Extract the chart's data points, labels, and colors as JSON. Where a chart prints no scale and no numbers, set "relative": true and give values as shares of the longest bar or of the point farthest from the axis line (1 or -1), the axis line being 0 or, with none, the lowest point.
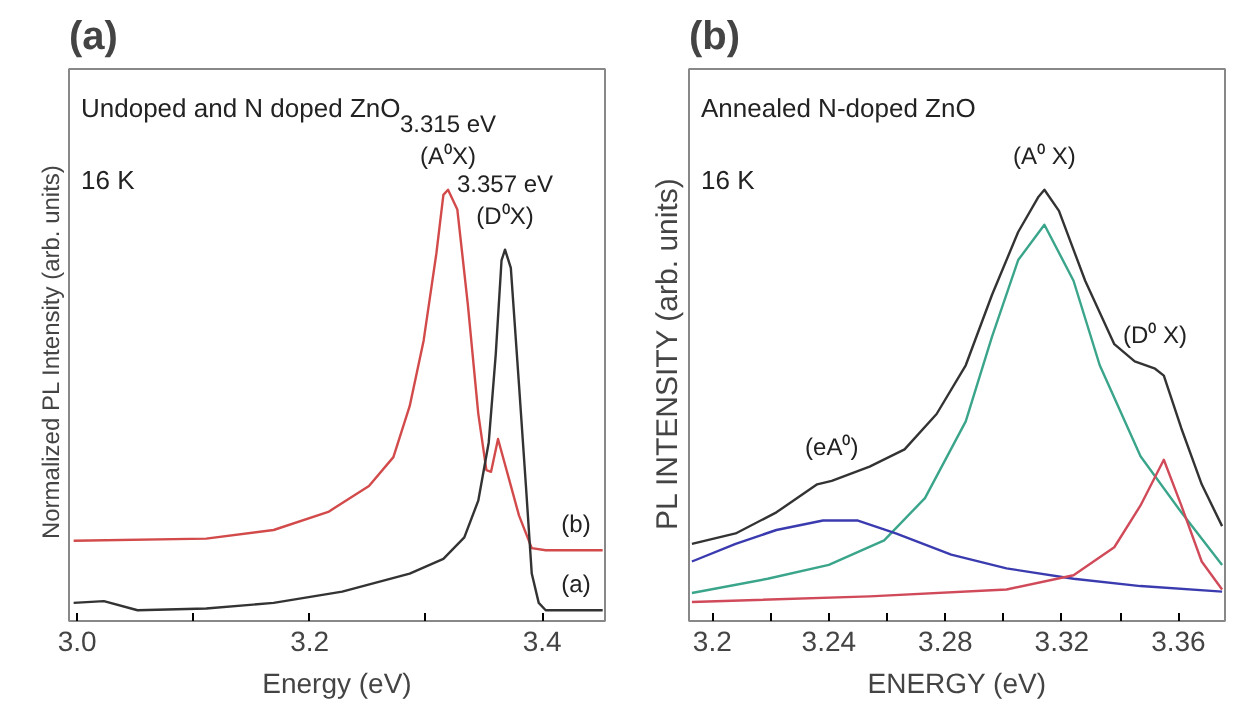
{
  "chart_data": [
    {
      "type": "line",
      "title": "(a)",
      "xlabel": "Energy (eV)",
      "ylabel": "Normalized  PL  Intensity (arb. units)",
      "relative": true,
      "tick_labels": "x",
      "grid": false,
      "xlim": [
        2.993,
        3.454
      ],
      "xticks": [
        {
          "value": 3.0,
          "label": "3.0"
        },
        {
          "value": 3.1,
          "label": null
        },
        3.2,
        {
          "value": 3.3,
          "label": null
        },
        3.4
      ],
      "annotations": [
        "Undoped and N doped ZnO",
        "16 K",
        {
          "text": "3.315 eV",
          "x": 3.319,
          "y": 1.0
        },
        {
          "text": "(A⁰X)",
          "x": 3.319,
          "y": 1.0
        },
        {
          "text": "3.357 eV",
          "x": 3.368,
          "y": 0.861
        },
        {
          "text": "(D⁰X)",
          "x": 3.368,
          "y": 0.861
        }
      ],
      "series": [
        {
          "name": "(b)",
          "color": "#d24a4a",
          "x": [
            2.997,
            3.111,
            3.169,
            3.216,
            3.251,
            3.272,
            3.286,
            3.298,
            3.309,
            3.315,
            3.319,
            3.327,
            3.336,
            3.345,
            3.352,
            3.356,
            3.362,
            3.368,
            3.38,
            3.391,
            3.403,
            3.452
          ],
          "values": [
            0.186,
            0.191,
            0.211,
            0.253,
            0.313,
            0.38,
            0.498,
            0.65,
            0.853,
            0.988,
            1.0,
            0.954,
            0.735,
            0.481,
            0.35,
            0.346,
            0.422,
            0.363,
            0.245,
            0.169,
            0.164,
            0.164
          ]
        },
        {
          "name": "(a)",
          "color": "#333333",
          "x": [
            2.997,
            3.023,
            3.052,
            3.111,
            3.169,
            3.228,
            3.286,
            3.315,
            3.333,
            3.345,
            3.354,
            3.36,
            3.365,
            3.368,
            3.373,
            3.38,
            3.386,
            3.391,
            3.397,
            3.403,
            3.452
          ],
          "values": [
            0.042,
            0.046,
            0.025,
            0.029,
            0.042,
            0.068,
            0.11,
            0.144,
            0.194,
            0.279,
            0.414,
            0.617,
            0.836,
            0.861,
            0.819,
            0.549,
            0.313,
            0.11,
            0.042,
            0.025,
            0.025
          ]
        }
      ]
    },
    {
      "type": "line",
      "title": "(b)",
      "xlabel": "ENERGY (eV)",
      "ylabel": "PL  INTENSITY  (arb. units)",
      "relative": true,
      "tick_labels": "x",
      "grid": false,
      "xlim": [
        3.192,
        3.376
      ],
      "xticks": [
        3.2,
        {
          "value": 3.22,
          "label": null
        },
        3.24,
        {
          "value": 3.26,
          "label": null
        },
        3.28,
        {
          "value": 3.3,
          "label": null
        },
        3.32,
        {
          "value": 3.34,
          "label": null
        },
        3.36
      ],
      "annotations": [
        "Annealed N-doped ZnO",
        "16 K",
        {
          "text": "(eA⁰)",
          "x": 3.241,
          "y": 0.325
        },
        {
          "text": "(A⁰ X)",
          "x": 3.314,
          "y": 1.0
        },
        {
          "text": "(D⁰ X)",
          "x": 3.352,
          "y": 0.585
        }
      ],
      "series": [
        {
          "color": "#333333",
          "x": [
            3.193,
            3.208,
            3.222,
            3.236,
            3.241,
            3.254,
            3.266,
            3.277,
            3.287,
            3.296,
            3.305,
            3.312,
            3.314,
            3.319,
            3.328,
            3.338,
            3.345,
            3.352,
            3.355,
            3.361,
            3.368,
            3.375
          ],
          "values": [
            0.179,
            0.203,
            0.252,
            0.317,
            0.325,
            0.358,
            0.398,
            0.48,
            0.593,
            0.756,
            0.902,
            0.984,
            1.0,
            0.951,
            0.789,
            0.642,
            0.602,
            0.585,
            0.569,
            0.447,
            0.317,
            0.22
          ]
        },
        {
          "color": "#3aa58a",
          "x": [
            3.193,
            3.219,
            3.24,
            3.259,
            3.273,
            3.287,
            3.296,
            3.305,
            3.314,
            3.324,
            3.333,
            3.347,
            3.361,
            3.375
          ],
          "values": [
            0.065,
            0.098,
            0.13,
            0.187,
            0.285,
            0.463,
            0.659,
            0.837,
            0.919,
            0.789,
            0.593,
            0.382,
            0.252,
            0.13
          ]
        },
        {
          "color": "#3b3bb0",
          "x": [
            3.193,
            3.208,
            3.222,
            3.238,
            3.25,
            3.263,
            3.282,
            3.301,
            3.324,
            3.347,
            3.375
          ],
          "values": [
            0.138,
            0.179,
            0.211,
            0.233,
            0.233,
            0.203,
            0.154,
            0.122,
            0.098,
            0.081,
            0.068
          ]
        },
        {
          "color": "#d04a5a",
          "x": [
            3.193,
            3.254,
            3.301,
            3.324,
            3.338,
            3.347,
            3.355,
            3.361,
            3.368,
            3.375
          ],
          "values": [
            0.044,
            0.057,
            0.073,
            0.106,
            0.171,
            0.268,
            0.374,
            0.268,
            0.138,
            0.073
          ]
        }
      ]
    }
  ]
}
